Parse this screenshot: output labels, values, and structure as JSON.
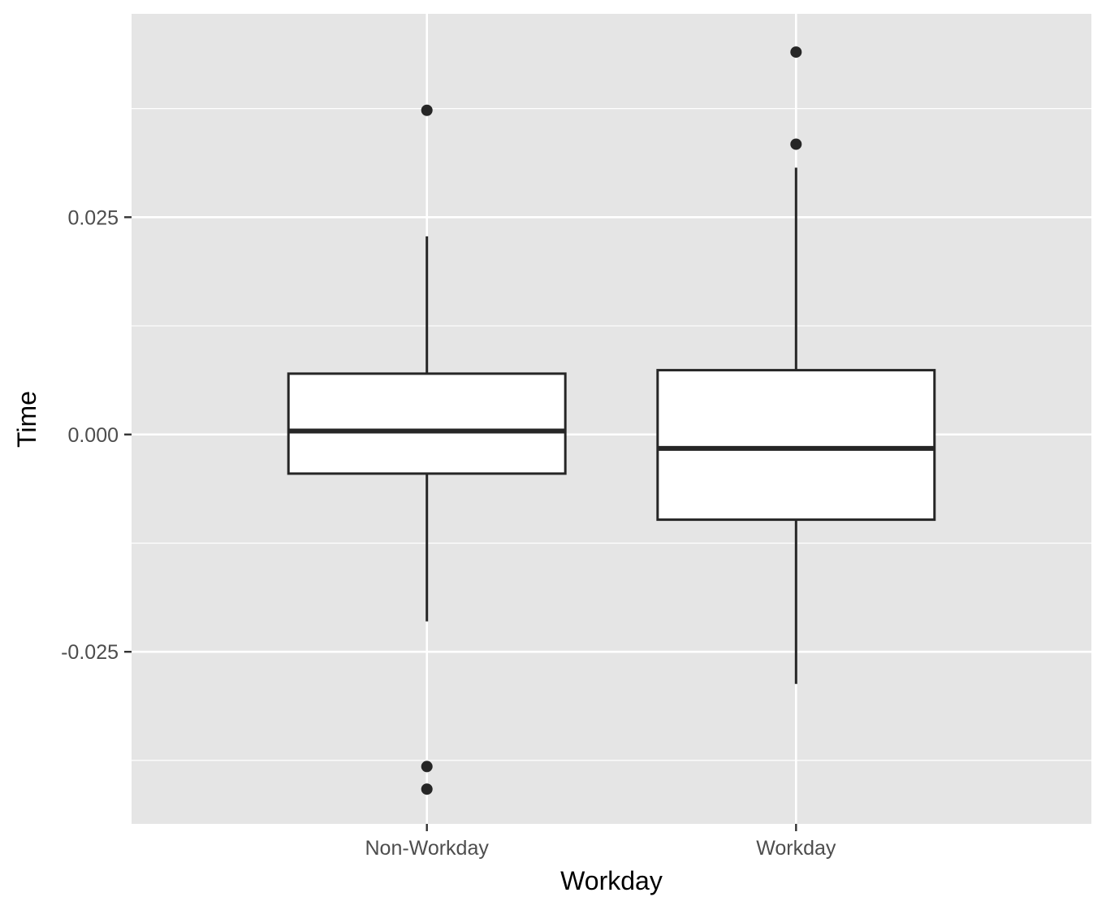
{
  "chart_data": {
    "type": "boxplot",
    "xlabel": "Workday",
    "ylabel": "Time",
    "categories": [
      "Non-Workday",
      "Workday"
    ],
    "ylim": [
      -0.0448,
      0.0484
    ],
    "y_ticks": [
      -0.025,
      0.0,
      0.025
    ],
    "y_tick_labels": [
      "-0.025",
      "0.000",
      "0.025"
    ],
    "grid": true,
    "boxes": [
      {
        "category": "Non-Workday",
        "whisker_low": -0.0215,
        "q1": -0.0045,
        "median": 0.0004,
        "q3": 0.007,
        "whisker_high": 0.0228,
        "outliers": [
          0.0373,
          -0.0382,
          -0.0408
        ]
      },
      {
        "category": "Workday",
        "whisker_low": -0.0287,
        "q1": -0.0098,
        "median": -0.0016,
        "q3": 0.0074,
        "whisker_high": 0.0307,
        "outliers": [
          0.044,
          0.0334
        ]
      }
    ]
  },
  "colors": {
    "panel_background": "#e5e5e5",
    "grid": "#ffffff",
    "box_fill": "#ffffff",
    "box_stroke": "#262626",
    "tick": "#333333"
  }
}
